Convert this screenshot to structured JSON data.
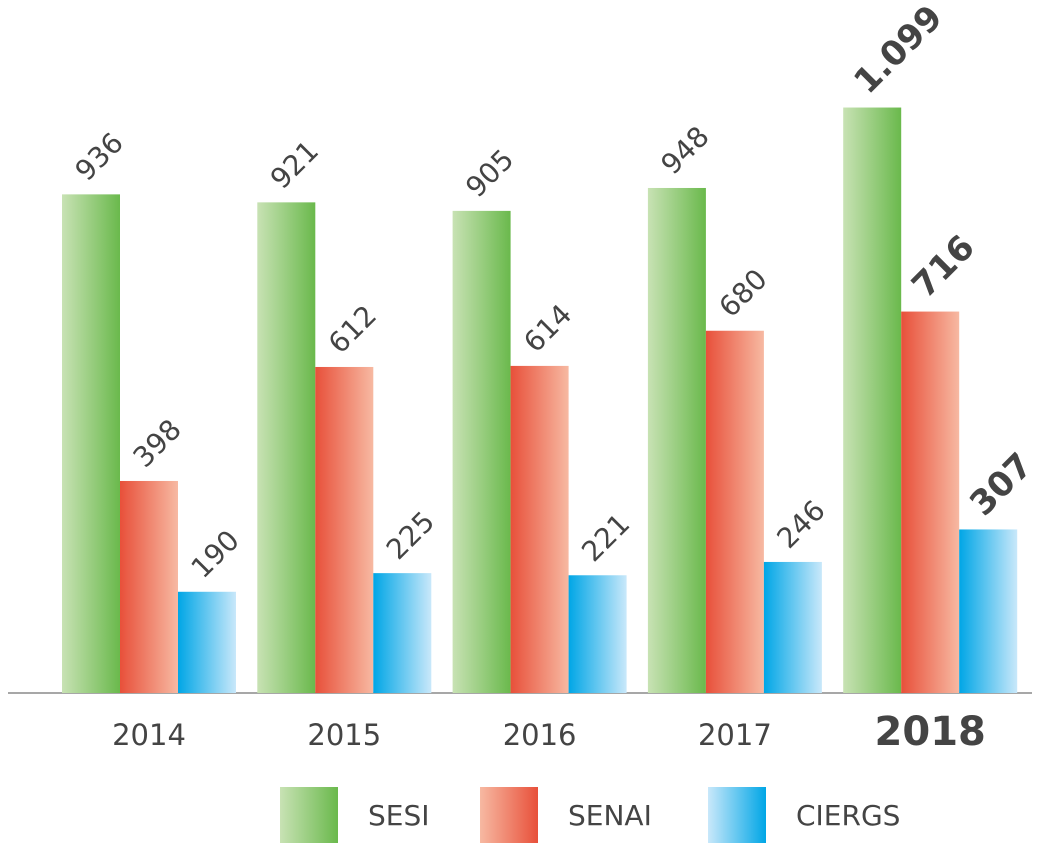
{
  "chart_data": {
    "type": "bar",
    "categories": [
      "2014",
      "2015",
      "2016",
      "2017",
      "2018"
    ],
    "series": [
      {
        "name": "SESI",
        "color": "#6ab94c",
        "values": [
          936,
          921,
          905,
          948,
          1099
        ],
        "value_labels": [
          "936",
          "921",
          "905",
          "948",
          "1.099"
        ]
      },
      {
        "name": "SENAI",
        "color": "#e8503a",
        "values": [
          398,
          612,
          614,
          680,
          716
        ]
      },
      {
        "name": "CIERGS",
        "color": "#00a6e6",
        "values": [
          190,
          225,
          221,
          246,
          307
        ]
      }
    ],
    "ylim": [
      0,
      1100
    ],
    "legend": "bottom"
  }
}
